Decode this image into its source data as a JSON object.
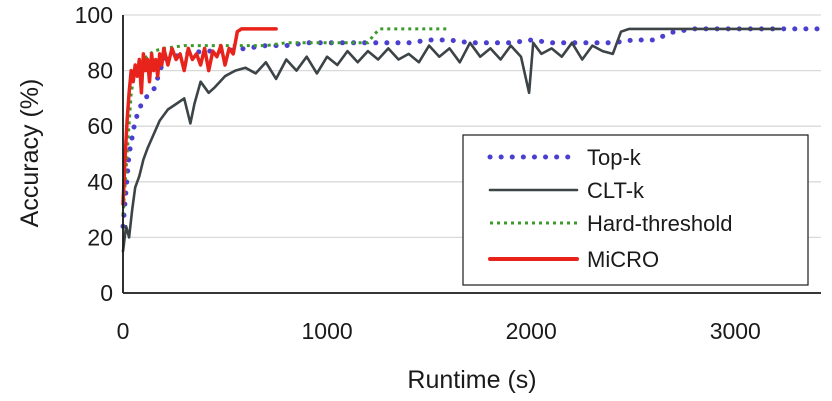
{
  "chart_data": {
    "type": "line",
    "xlabel": "Runtime (s)",
    "ylabel": "Accuracy (%)",
    "xlim": [
      0,
      3420
    ],
    "ylim": [
      0,
      100
    ],
    "xticks": [
      0,
      1000,
      2000,
      3000
    ],
    "yticks": [
      0,
      20,
      40,
      60,
      80,
      100
    ],
    "grid": "horizontal",
    "legend_position": "lower-right",
    "series": [
      {
        "name": "Top-k",
        "color": "#4b3fcf",
        "style": "dotted-round",
        "x": [
          0,
          30,
          60,
          90,
          120,
          150,
          200,
          300,
          400,
          500,
          600,
          700,
          800,
          900,
          1000,
          1100,
          1200,
          1300,
          1400,
          1500,
          1600,
          1700,
          1800,
          1900,
          2000,
          2100,
          2200,
          2300,
          2400,
          2500,
          2600,
          2700,
          2800,
          2900,
          3000,
          3100,
          3200,
          3300,
          3420
        ],
        "y": [
          24,
          50,
          62,
          68,
          71,
          73,
          84,
          86,
          87,
          87,
          88,
          89,
          89,
          90,
          90,
          90,
          90,
          90,
          90,
          91,
          91,
          90,
          90,
          90,
          91,
          90,
          90,
          90,
          90,
          91,
          91,
          94,
          95,
          95,
          95,
          95,
          95,
          95,
          95
        ]
      },
      {
        "name": "CLT-k",
        "color": "#3c4447",
        "style": "solid",
        "x": [
          0,
          15,
          30,
          45,
          60,
          80,
          100,
          120,
          150,
          180,
          220,
          260,
          300,
          330,
          350,
          380,
          420,
          450,
          500,
          550,
          600,
          650,
          700,
          750,
          800,
          850,
          900,
          950,
          1000,
          1050,
          1100,
          1150,
          1200,
          1250,
          1300,
          1350,
          1400,
          1450,
          1500,
          1550,
          1600,
          1650,
          1700,
          1750,
          1800,
          1850,
          1900,
          1950,
          1990,
          2010,
          2050,
          2100,
          2150,
          2200,
          2250,
          2300,
          2350,
          2400,
          2440,
          2480,
          2600,
          2800,
          3000,
          3200,
          3220
        ],
        "y": [
          15,
          24,
          20,
          30,
          38,
          42,
          48,
          52,
          57,
          62,
          66,
          68,
          70,
          61,
          68,
          76,
          72,
          74,
          78,
          80,
          81,
          79,
          83,
          77,
          84,
          80,
          85,
          79,
          85,
          82,
          87,
          83,
          87,
          84,
          88,
          84,
          86,
          83,
          89,
          85,
          88,
          83,
          90,
          85,
          88,
          84,
          89,
          85,
          72,
          90,
          86,
          88,
          85,
          90,
          84,
          89,
          87,
          86,
          94,
          95,
          95,
          95,
          95,
          95,
          95
        ]
      },
      {
        "name": "Hard-threshold",
        "color": "#3a9b2a",
        "style": "dotted-square",
        "x": [
          0,
          20,
          40,
          60,
          100,
          150,
          200,
          300,
          400,
          500,
          600,
          700,
          800,
          900,
          1000,
          1100,
          1200,
          1230,
          1260,
          1300,
          1400,
          1500,
          1600
        ],
        "y": [
          28,
          50,
          72,
          80,
          84,
          87,
          88,
          89,
          89,
          89,
          89,
          89,
          90,
          90,
          90,
          90,
          90,
          93,
          95,
          95,
          95,
          95,
          95
        ]
      },
      {
        "name": "MiCRO",
        "color": "#e8231b",
        "style": "solid-thick",
        "x": [
          0,
          10,
          20,
          30,
          40,
          50,
          60,
          70,
          80,
          90,
          100,
          110,
          120,
          130,
          140,
          150,
          160,
          170,
          180,
          190,
          200,
          220,
          240,
          260,
          280,
          300,
          320,
          340,
          360,
          380,
          400,
          420,
          440,
          460,
          480,
          500,
          520,
          540,
          550,
          560,
          580,
          620,
          700,
          750
        ],
        "y": [
          32,
          48,
          62,
          72,
          80,
          76,
          82,
          78,
          84,
          72,
          86,
          80,
          84,
          76,
          86,
          80,
          84,
          78,
          86,
          82,
          88,
          82,
          88,
          84,
          86,
          80,
          88,
          84,
          86,
          82,
          88,
          80,
          87,
          85,
          89,
          82,
          88,
          86,
          90,
          94,
          95,
          95,
          95,
          95
        ]
      }
    ]
  }
}
